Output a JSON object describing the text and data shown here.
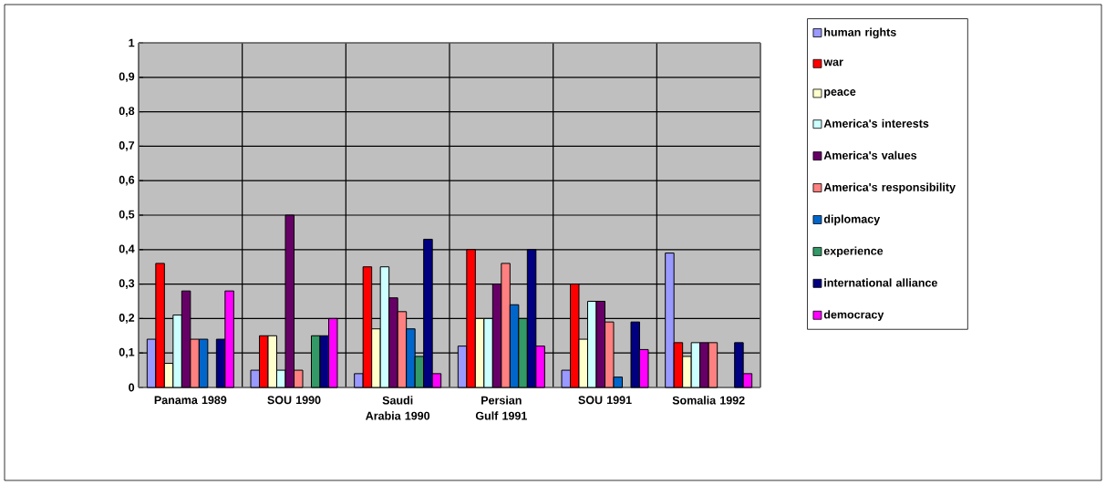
{
  "chart_data": {
    "type": "bar",
    "categories": [
      "Panama 1989",
      "SOU 1990",
      "Saudi Arabia 1990",
      "Persian Gulf 1991",
      "SOU 1991",
      "Somalia 1992"
    ],
    "series": [
      {
        "name": "human rights",
        "color": "#9999ff",
        "values": [
          0.14,
          0.05,
          0.04,
          0.12,
          0.05,
          0.39
        ]
      },
      {
        "name": "war",
        "color": "#ff0000",
        "values": [
          0.36,
          0.15,
          0.35,
          0.4,
          0.3,
          0.13
        ]
      },
      {
        "name": "peace",
        "color": "#ffffcc",
        "values": [
          0.07,
          0.15,
          0.17,
          0.2,
          0.14,
          0.09
        ]
      },
      {
        "name": "America's interests",
        "color": "#ccffff",
        "values": [
          0.21,
          0.05,
          0.35,
          0.2,
          0.25,
          0.13
        ]
      },
      {
        "name": "America's values",
        "color": "#660066",
        "values": [
          0.28,
          0.5,
          0.26,
          0.3,
          0.25,
          0.13
        ]
      },
      {
        "name": "America's responsibility",
        "color": "#ff8080",
        "values": [
          0.14,
          0.05,
          0.22,
          0.36,
          0.19,
          0.13
        ]
      },
      {
        "name": "diplomacy",
        "color": "#0066cc",
        "values": [
          0.14,
          null,
          0.17,
          0.24,
          0.03,
          null
        ]
      },
      {
        "name": "experience",
        "color": "#339966",
        "values": [
          null,
          0.15,
          0.09,
          0.2,
          null,
          null
        ]
      },
      {
        "name": "international alliance",
        "color": "#000080",
        "values": [
          0.14,
          0.15,
          0.43,
          0.4,
          0.19,
          0.13
        ]
      },
      {
        "name": "democracy",
        "color": "#ff00ff",
        "values": [
          0.28,
          0.2,
          0.04,
          0.12,
          0.11,
          0.04
        ]
      }
    ],
    "ylim": [
      0,
      1
    ],
    "yticks": [
      0,
      {
        "value": 0.1,
        "label": "0,1"
      },
      {
        "value": 0.2,
        "label": "0,2"
      },
      {
        "value": 0.3,
        "label": "0,3"
      },
      {
        "value": 0.4,
        "label": "0,4"
      },
      {
        "value": 0.5,
        "label": "0,5"
      },
      {
        "value": 0.6,
        "label": "0,6"
      },
      {
        "value": 0.7,
        "label": "0,7"
      },
      {
        "value": 0.8,
        "label": "0,8"
      },
      {
        "value": 0.9,
        "label": "0,9"
      },
      1
    ],
    "grid": true,
    "legend": "right"
  }
}
